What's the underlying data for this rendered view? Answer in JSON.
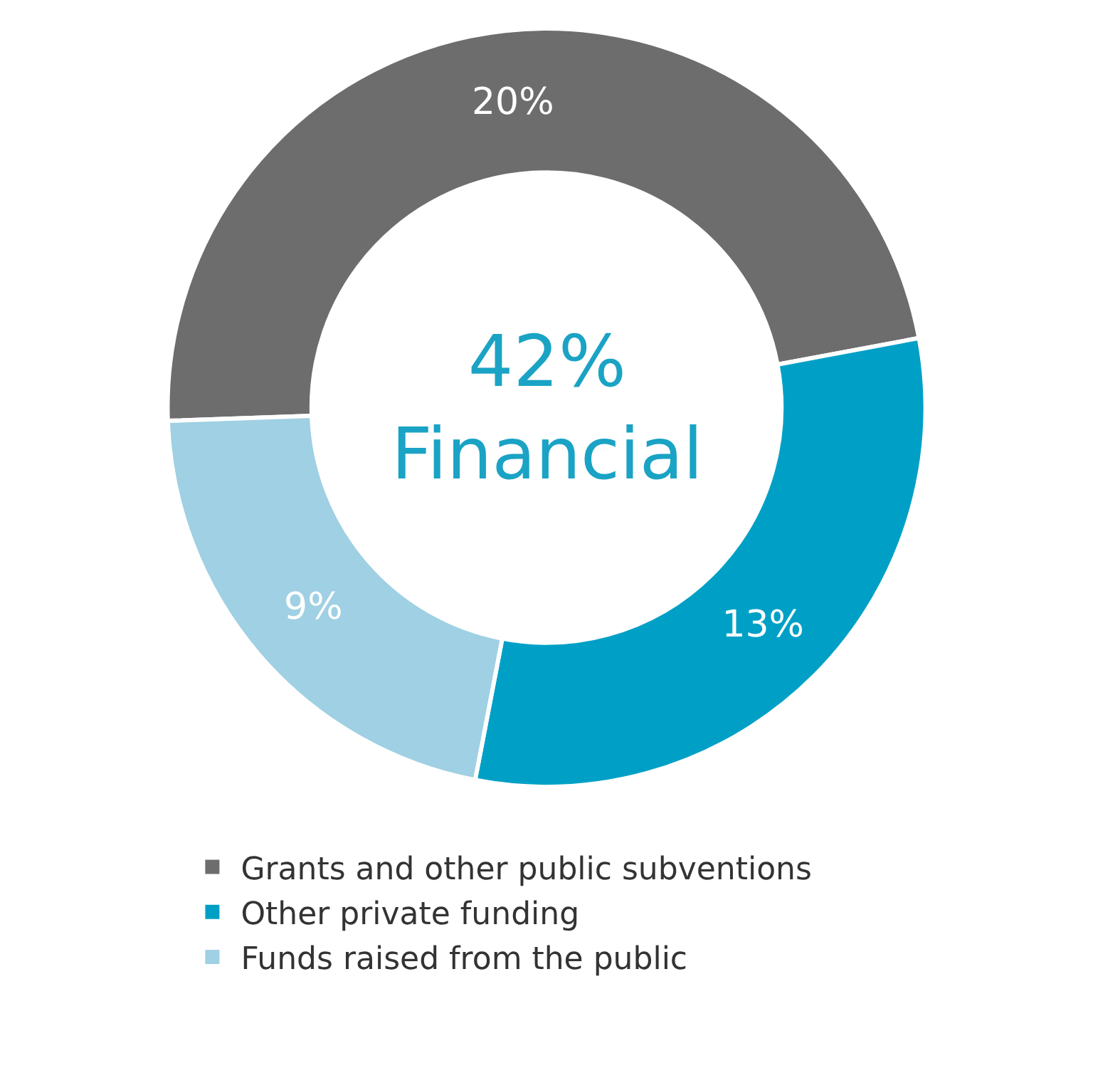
{
  "chart_data": {
    "type": "donut",
    "categories": [
      "Grants and other public subventions",
      "Other private funding",
      "Funds raised from the public"
    ],
    "values": [
      20,
      13,
      9
    ],
    "colors": [
      "#6d6d6d",
      "#00a0c6",
      "#9fd0e3"
    ],
    "value_labels": [
      "20%",
      "13%",
      "9%"
    ],
    "annotations": [
      "42%\nFinancial"
    ],
    "legend": "bottom"
  }
}
